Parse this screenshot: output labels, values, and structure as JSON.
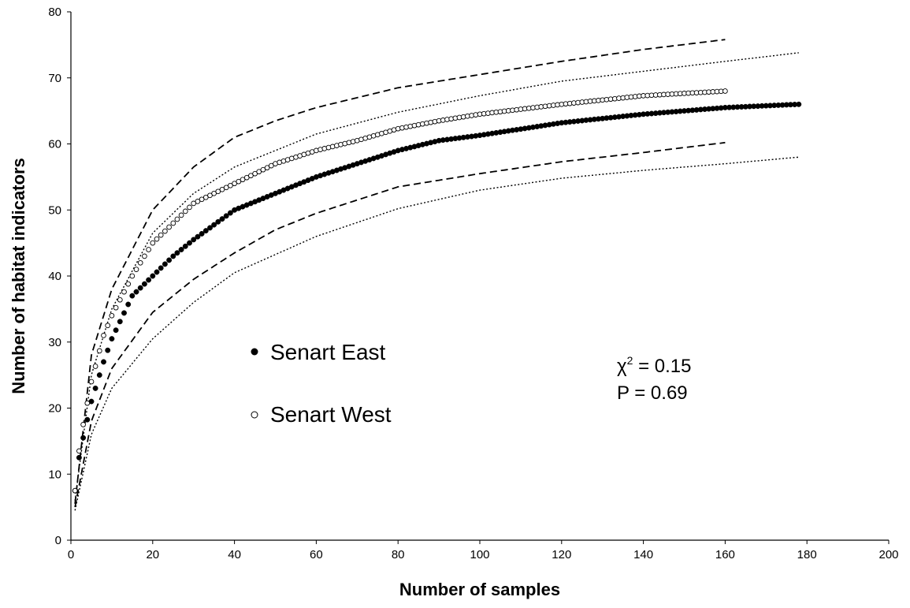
{
  "chart_data": {
    "type": "scatter",
    "xlabel": "Number of samples",
    "ylabel": "Number of habitat indicators",
    "xlim": [
      0,
      200
    ],
    "ylim": [
      0,
      80
    ],
    "x_ticks": [
      0,
      20,
      40,
      60,
      80,
      100,
      120,
      140,
      160,
      180,
      200
    ],
    "y_ticks": [
      0,
      10,
      20,
      30,
      40,
      50,
      60,
      70,
      80
    ],
    "x_tick_labels": [
      "0",
      "20",
      "40",
      "60",
      "80",
      "100",
      "120",
      "140",
      "160",
      "180",
      "200"
    ],
    "y_tick_labels": [
      "0",
      "10",
      "20",
      "30",
      "40",
      "50",
      "60",
      "70",
      "80"
    ],
    "grid": false,
    "series": [
      {
        "name": "Senart East",
        "marker": "filled-circle",
        "color": "#000000",
        "x_start": 1,
        "x_end": 178,
        "points": [
          [
            1,
            7.5
          ],
          [
            2,
            12.5
          ],
          [
            3,
            15.5
          ],
          [
            5,
            21
          ],
          [
            8,
            27
          ],
          [
            10,
            30.5
          ],
          [
            15,
            37
          ],
          [
            20,
            40
          ],
          [
            25,
            43
          ],
          [
            30,
            45.5
          ],
          [
            40,
            50
          ],
          [
            50,
            52.5
          ],
          [
            60,
            55
          ],
          [
            70,
            57
          ],
          [
            80,
            59
          ],
          [
            90,
            60.5
          ],
          [
            100,
            61.3
          ],
          [
            120,
            63.2
          ],
          [
            140,
            64.5
          ],
          [
            160,
            65.5
          ],
          [
            178,
            66
          ]
        ]
      },
      {
        "name": "Senart West",
        "marker": "open-circle",
        "color": "#000000",
        "x_start": 1,
        "x_end": 160,
        "points": [
          [
            1,
            7.5
          ],
          [
            2,
            13.5
          ],
          [
            3,
            17.5
          ],
          [
            5,
            24
          ],
          [
            8,
            31
          ],
          [
            10,
            34
          ],
          [
            15,
            40
          ],
          [
            20,
            45
          ],
          [
            25,
            48
          ],
          [
            30,
            51
          ],
          [
            40,
            54
          ],
          [
            50,
            57
          ],
          [
            60,
            59
          ],
          [
            70,
            60.5
          ],
          [
            80,
            62.3
          ],
          [
            90,
            63.5
          ],
          [
            100,
            64.5
          ],
          [
            120,
            66
          ],
          [
            140,
            67.3
          ],
          [
            160,
            68
          ]
        ]
      }
    ],
    "bounds": [
      {
        "line_style": "dashed",
        "upper": [
          [
            1,
            5.5
          ],
          [
            5,
            28
          ],
          [
            10,
            38
          ],
          [
            20,
            50
          ],
          [
            30,
            56.5
          ],
          [
            40,
            61
          ],
          [
            50,
            63.5
          ],
          [
            60,
            65.5
          ],
          [
            80,
            68.5
          ],
          [
            100,
            70.5
          ],
          [
            120,
            72.5
          ],
          [
            140,
            74.3
          ],
          [
            160,
            75.8
          ]
        ],
        "lower": [
          [
            1,
            5
          ],
          [
            5,
            18
          ],
          [
            10,
            26
          ],
          [
            20,
            34.5
          ],
          [
            30,
            39.5
          ],
          [
            40,
            43.5
          ],
          [
            50,
            47
          ],
          [
            60,
            49.5
          ],
          [
            80,
            53.5
          ],
          [
            100,
            55.5
          ],
          [
            120,
            57.3
          ],
          [
            140,
            58.7
          ],
          [
            160,
            60.2
          ]
        ]
      },
      {
        "line_style": "dotted",
        "upper": [
          [
            1,
            6
          ],
          [
            5,
            25
          ],
          [
            10,
            35
          ],
          [
            20,
            46.5
          ],
          [
            30,
            52.5
          ],
          [
            40,
            56.5
          ],
          [
            60,
            61.5
          ],
          [
            80,
            64.8
          ],
          [
            100,
            67.3
          ],
          [
            120,
            69.5
          ],
          [
            140,
            71
          ],
          [
            160,
            72.5
          ],
          [
            178,
            73.8
          ]
        ],
        "lower": [
          [
            1,
            4.5
          ],
          [
            5,
            16
          ],
          [
            10,
            23
          ],
          [
            20,
            30.5
          ],
          [
            30,
            36
          ],
          [
            40,
            40.5
          ],
          [
            60,
            46
          ],
          [
            80,
            50.2
          ],
          [
            100,
            53
          ],
          [
            120,
            54.8
          ],
          [
            140,
            56
          ],
          [
            160,
            57
          ],
          [
            178,
            58
          ]
        ]
      }
    ],
    "legend": {
      "placement": "middle-left",
      "entries": [
        {
          "marker": "filled-circle",
          "label": "Senart East"
        },
        {
          "marker": "open-circle",
          "label": "Senart West"
        }
      ]
    },
    "annotation": {
      "chi_symbol": "χ",
      "chi_superscript": "2",
      "chi_value": " = 0.15",
      "p_text": "P = 0.69"
    }
  }
}
